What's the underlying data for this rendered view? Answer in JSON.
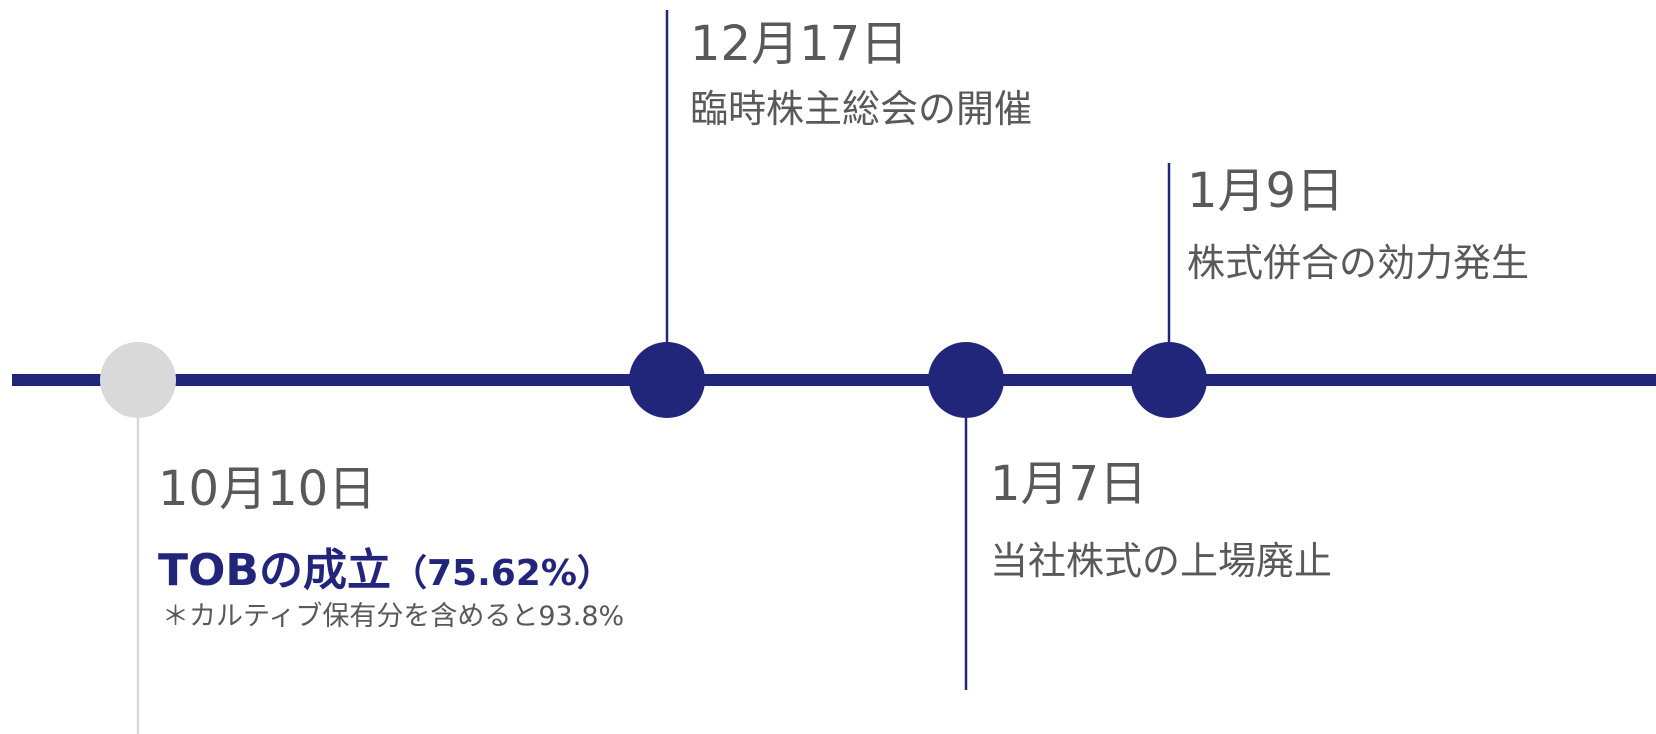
{
  "events": [
    {
      "date": "10月10日",
      "label": "TOBの成立",
      "label_detail": "（75.62%）",
      "note": "＊カルティブ保有分を含めると93.8%"
    },
    {
      "date": "12月17日",
      "label": "臨時株主総会の開催"
    },
    {
      "date": "1月7日",
      "label": "当社株式の上場廃止"
    },
    {
      "date": "1月9日",
      "label": "株式併合の効力発生"
    }
  ]
}
